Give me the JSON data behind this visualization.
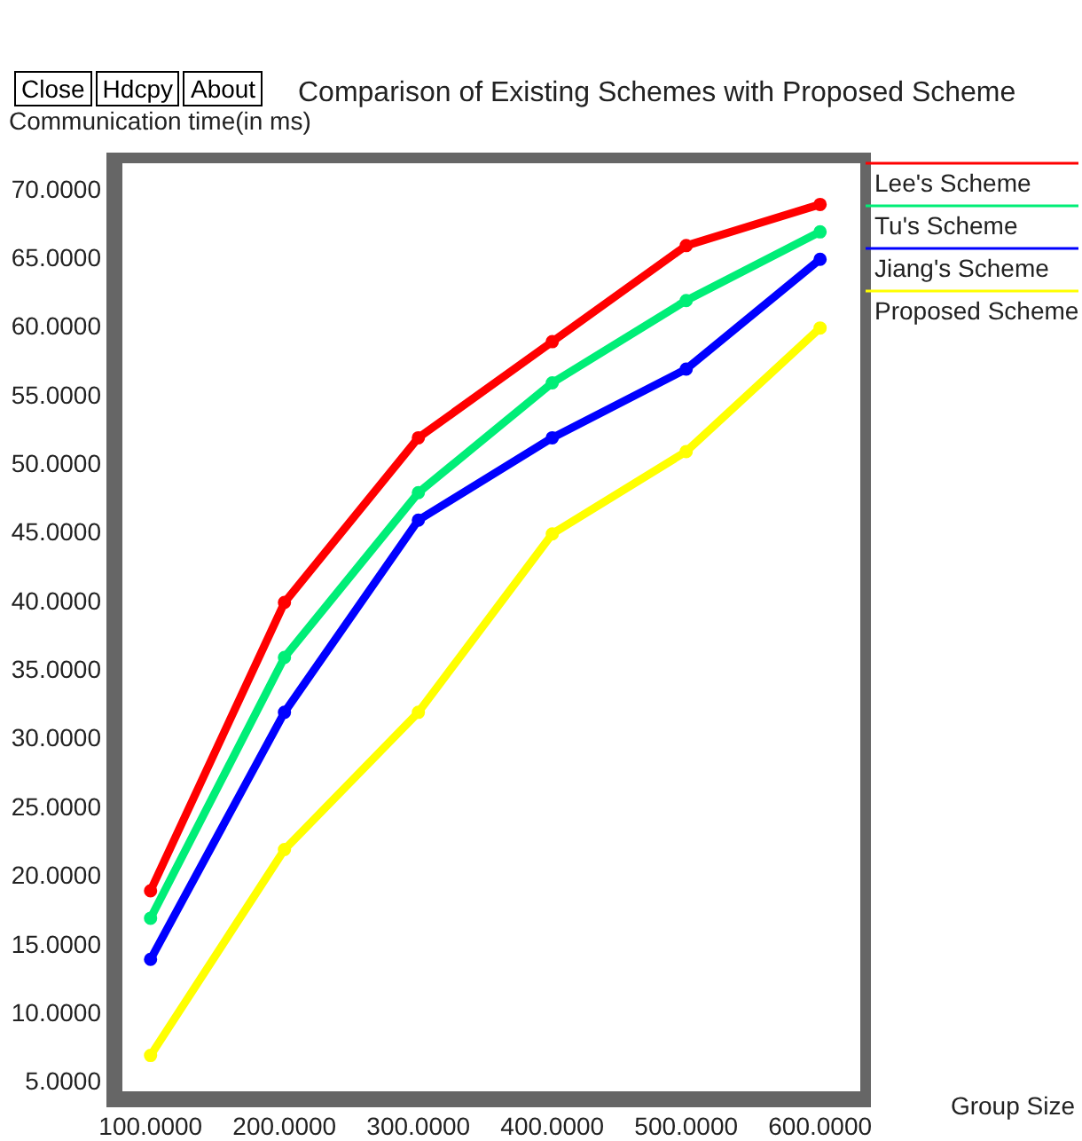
{
  "chart_data": {
    "type": "line",
    "title": "Comparison of Existing Schemes with Proposed Scheme",
    "xlabel": "Group Size",
    "ylabel": "Communication time(in ms)",
    "annotations": [
      "Close",
      "Hdcpy",
      "About"
    ],
    "x": [
      100,
      200,
      300,
      400,
      500,
      600
    ],
    "series": [
      {
        "name": "Lee's Scheme",
        "color": "#ff0000",
        "values": [
          19,
          40,
          52,
          59,
          66,
          69
        ]
      },
      {
        "name": "Tu's Scheme",
        "color": "#00ee77",
        "values": [
          17,
          36,
          48,
          56,
          62,
          67
        ]
      },
      {
        "name": "Jiang's Scheme",
        "color": "#0000ff",
        "values": [
          14,
          32,
          46,
          52,
          57,
          65
        ]
      },
      {
        "name": "Proposed Scheme",
        "color": "#ffff00",
        "values": [
          7,
          22,
          32,
          45,
          51,
          60
        ]
      }
    ],
    "xlim": [
      75,
      630
    ],
    "ylim": [
      4,
      72
    ],
    "xticks": [
      {
        "value": 100,
        "label": "100.0000"
      },
      {
        "value": 200,
        "label": "200.0000"
      },
      {
        "value": 300,
        "label": "300.0000"
      },
      {
        "value": 400,
        "label": "400.0000"
      },
      {
        "value": 500,
        "label": "500.0000"
      },
      {
        "value": 600,
        "label": "600.0000"
      }
    ],
    "yticks": [
      {
        "value": 5,
        "label": "5.0000"
      },
      {
        "value": 10,
        "label": "10.0000"
      },
      {
        "value": 15,
        "label": "15.0000"
      },
      {
        "value": 20,
        "label": "20.0000"
      },
      {
        "value": 25,
        "label": "25.0000"
      },
      {
        "value": 30,
        "label": "30.0000"
      },
      {
        "value": 35,
        "label": "35.0000"
      },
      {
        "value": 40,
        "label": "40.0000"
      },
      {
        "value": 45,
        "label": "45.0000"
      },
      {
        "value": 50,
        "label": "50.0000"
      },
      {
        "value": 55,
        "label": "55.0000"
      },
      {
        "value": 60,
        "label": "60.0000"
      },
      {
        "value": 65,
        "label": "65.0000"
      },
      {
        "value": 70,
        "label": "70.0000"
      }
    ],
    "grid": false,
    "legend": "right",
    "marker": "circle",
    "line_style": "solid"
  }
}
